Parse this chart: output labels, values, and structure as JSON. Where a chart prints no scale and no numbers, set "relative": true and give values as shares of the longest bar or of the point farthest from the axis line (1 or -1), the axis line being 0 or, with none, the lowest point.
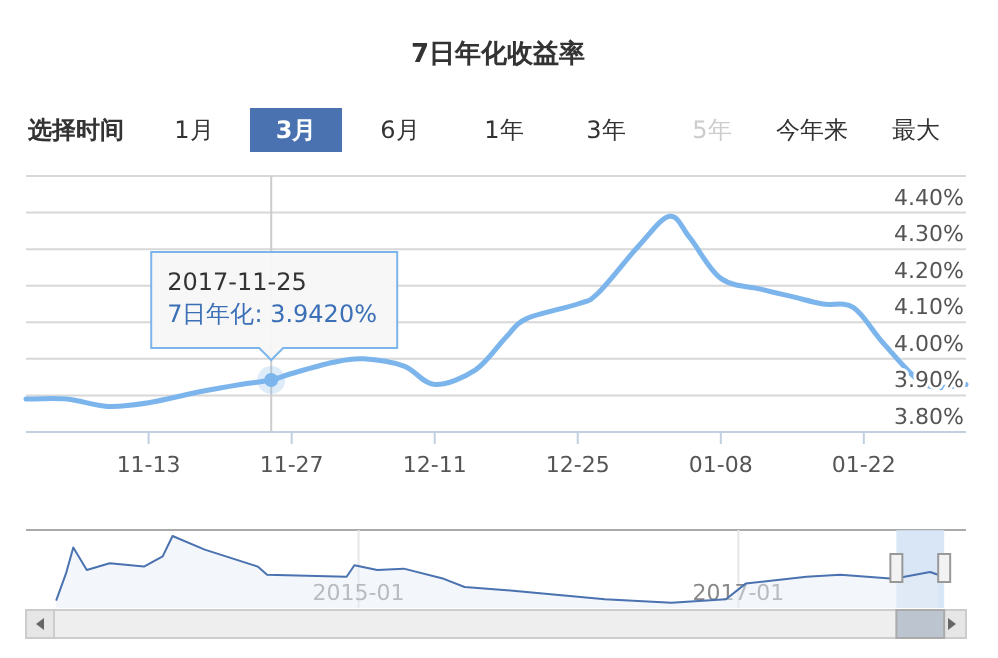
{
  "chart_data": [
    {
      "type": "line",
      "title": "7日年化收益率",
      "annotations": [
        "选择时间",
        "1月",
        "3月",
        "6月",
        "1年",
        "3年",
        "5年",
        "今年来",
        "最大",
        {
          "text": "2017-11-25\n7日年化: 3.9420%",
          "x": "2017-11-25",
          "y": 3.942
        }
      ],
      "x": [
        "2017-11-01",
        "2017-11-05",
        "2017-11-09",
        "2017-11-13",
        "2017-11-18",
        "2017-11-22",
        "2017-11-25",
        "2017-11-27",
        "2017-12-01",
        "2017-12-04",
        "2017-12-08",
        "2017-12-11",
        "2017-12-15",
        "2017-12-18",
        "2017-12-20",
        "2017-12-25",
        "2017-12-27",
        "2017-12-31",
        "2018-01-03",
        "2018-01-05",
        "2018-01-08",
        "2018-01-12",
        "2018-01-15",
        "2018-01-18",
        "2018-01-21",
        "2018-01-24",
        "2018-01-28",
        "2018-02-01"
      ],
      "series": [
        {
          "color": "#7cb5ec",
          "values": [
            3.89,
            3.89,
            3.87,
            3.88,
            3.91,
            3.93,
            3.942,
            3.96,
            3.99,
            4.0,
            3.98,
            3.93,
            3.97,
            4.06,
            4.11,
            4.15,
            4.18,
            4.31,
            4.39,
            4.33,
            4.22,
            4.19,
            4.17,
            4.15,
            4.14,
            4.04,
            3.93,
            3.93
          ]
        }
      ],
      "xlim": [
        "2017-11-01",
        "2018-02-01"
      ],
      "xticks": [
        {
          "value": "2017-11-13",
          "label": "11-13"
        },
        {
          "value": "2017-11-27",
          "label": "11-27"
        },
        {
          "value": "2017-12-11",
          "label": "12-11"
        },
        {
          "value": "2017-12-25",
          "label": "12-25"
        },
        {
          "value": "2018-01-08",
          "label": "01-08"
        },
        {
          "value": "2018-01-22",
          "label": "01-22"
        }
      ],
      "ylim": [
        3.8,
        4.5
      ],
      "yticks": [
        {
          "value": 3.8,
          "label": "3.80%"
        },
        {
          "value": 3.9,
          "label": "3.90%"
        },
        {
          "value": 4.0,
          "label": "4.00%"
        },
        {
          "value": 4.1,
          "label": "4.10%"
        },
        {
          "value": 4.2,
          "label": "4.20%"
        },
        {
          "value": 4.3,
          "label": "4.30%"
        },
        {
          "value": 4.4,
          "label": "4.40%"
        },
        {
          "value": 4.5,
          "label": null
        }
      ],
      "grid": "y",
      "ref_lines": [
        {
          "axis": "x",
          "value": "2017-11-25",
          "color": "#cccccc"
        }
      ]
    },
    {
      "type": "area",
      "relative": true,
      "color": "#4a72b0",
      "x": [
        "2013-05-29",
        "2013-06-17",
        "2013-07-01",
        "2013-07-27",
        "2013-09-09",
        "2013-11-14",
        "2013-12-20",
        "2014-01-08",
        "2014-03-11",
        "2014-06-21",
        "2014-07-09",
        "2014-12-09",
        "2014-12-24",
        "2015-02-06",
        "2015-03-29",
        "2015-06-14",
        "2015-07-24",
        "2015-10-20",
        "2016-04-19",
        "2016-08-25",
        "2016-12-08",
        "2017-01-15",
        "2017-05-12",
        "2017-07-16",
        "2017-10-27",
        "2018-01-05",
        "2018-01-20"
      ],
      "values": [
        0.05,
        0.45,
        0.83,
        0.5,
        0.6,
        0.55,
        0.7,
        1.0,
        0.8,
        0.55,
        0.43,
        0.4,
        0.57,
        0.5,
        0.52,
        0.37,
        0.25,
        0.2,
        0.07,
        0.02,
        0.07,
        0.3,
        0.4,
        0.43,
        0.37,
        0.47,
        0.43
      ],
      "xlim": [
        "2013-04-01",
        "2018-03-15"
      ],
      "xticks": [
        {
          "value": "2015-01-01",
          "label": "2015-01"
        },
        {
          "value": "2017-01-01",
          "label": "2017-01"
        }
      ],
      "grid": "x",
      "bands": [
        {
          "axis": "x",
          "from": "2017-11-01",
          "to": "2018-02-01",
          "color": "#cfe0f3"
        }
      ]
    }
  ]
}
